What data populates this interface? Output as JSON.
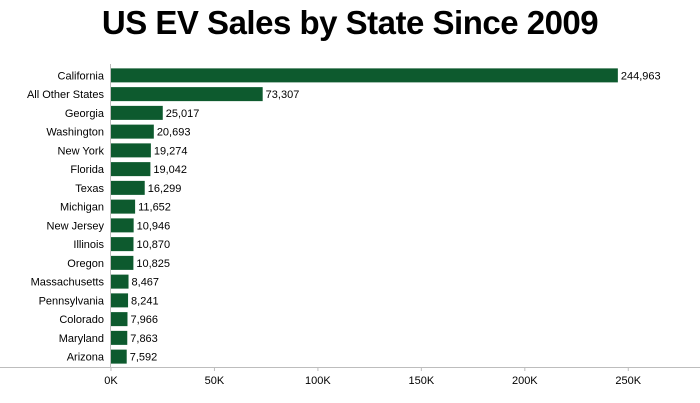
{
  "title": "US EV Sales by State Since 2009",
  "chart_data": {
    "type": "bar",
    "orientation": "horizontal",
    "title": "US EV Sales by State Since 2009",
    "categories": [
      "California",
      "All Other States",
      "Georgia",
      "Washington",
      "New York",
      "Florida",
      "Texas",
      "Michigan",
      "New Jersey",
      "Illinois",
      "Oregon",
      "Massachusetts",
      "Pennsylvania",
      "Colorado",
      "Maryland",
      "Arizona"
    ],
    "values": [
      244963,
      73307,
      25017,
      20693,
      19274,
      19042,
      16299,
      11652,
      10946,
      10870,
      10825,
      8467,
      8241,
      7966,
      7863,
      7592
    ],
    "value_labels": [
      "244,963",
      "73,307",
      "25,017",
      "20,693",
      "19,274",
      "19,042",
      "16,299",
      "11,652",
      "10,946",
      "10,870",
      "10,825",
      "8,467",
      "8,241",
      "7,966",
      "7,863",
      "7,592"
    ],
    "xlim": [
      0,
      275000
    ],
    "xticks": [
      0,
      50000,
      100000,
      150000,
      200000,
      250000
    ],
    "xtick_labels": [
      "0K",
      "50K",
      "100K",
      "150K",
      "200K",
      "250K"
    ],
    "bar_color": "#0d5a2e",
    "grid": false,
    "legend": "none"
  }
}
